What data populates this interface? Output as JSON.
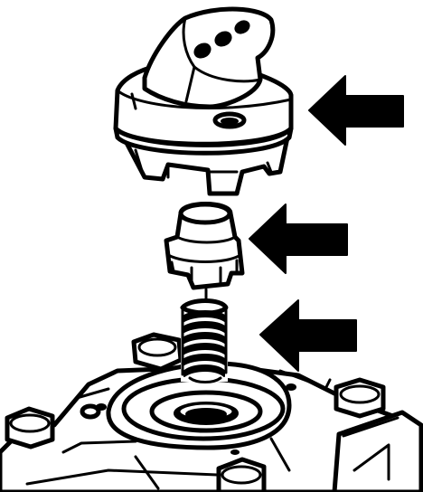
{
  "figure": {
    "ink_color": "#000000",
    "paper_color": "#ffffff",
    "parts": [
      {
        "id": "housing-cover",
        "icon": "housing-cover-drawing"
      },
      {
        "id": "valve-piston",
        "icon": "valve-piston-drawing"
      },
      {
        "id": "coil-spring",
        "icon": "coil-spring-drawing"
      },
      {
        "id": "valve-body",
        "icon": "valve-body-drawing"
      }
    ],
    "pointer_arrows": 3,
    "arrow_direction": "left"
  }
}
